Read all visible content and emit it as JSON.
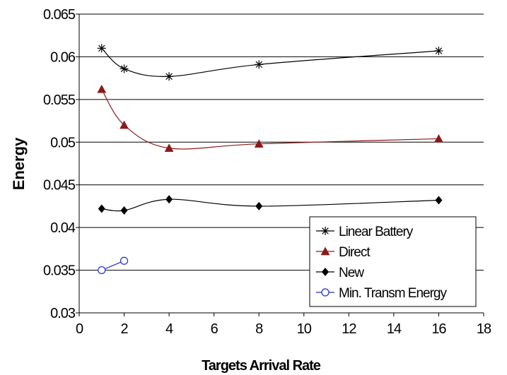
{
  "chart_data": {
    "type": "line",
    "xlabel": "Targets Arrival Rate",
    "ylabel": "Energy",
    "xlim": [
      0,
      18
    ],
    "ylim": [
      0.03,
      0.065
    ],
    "xticks": [
      "0",
      "2",
      "4",
      "6",
      "8",
      "10",
      "12",
      "14",
      "16",
      "18"
    ],
    "yticks": [
      "0.03",
      "0.035",
      "0.04",
      "0.045",
      "0.05",
      "0.055",
      "0.06",
      "0.065"
    ],
    "grid": "horizontal",
    "legend_position": "bottom-right",
    "smoothed": true,
    "series": [
      {
        "name": "Linear Battery",
        "marker": "asterisk",
        "color": "#000000",
        "x": [
          1,
          2,
          4,
          8,
          16
        ],
        "y": [
          0.061,
          0.0586,
          0.0577,
          0.0591,
          0.0607
        ]
      },
      {
        "name": "Direct",
        "marker": "triangle",
        "color": "#8b1a1a",
        "x": [
          1,
          2,
          4,
          8,
          16
        ],
        "y": [
          0.0562,
          0.052,
          0.0493,
          0.0498,
          0.0504
        ]
      },
      {
        "name": "New",
        "marker": "diamond",
        "color": "#000000",
        "x": [
          1,
          2,
          4,
          8,
          16
        ],
        "y": [
          0.0422,
          0.042,
          0.0433,
          0.0425,
          0.0432
        ]
      },
      {
        "name": "Min. Transm Energy",
        "marker": "circle",
        "color": "#1f2bd0",
        "x": [
          1,
          2
        ],
        "y": [
          0.035,
          0.0361
        ]
      }
    ]
  }
}
